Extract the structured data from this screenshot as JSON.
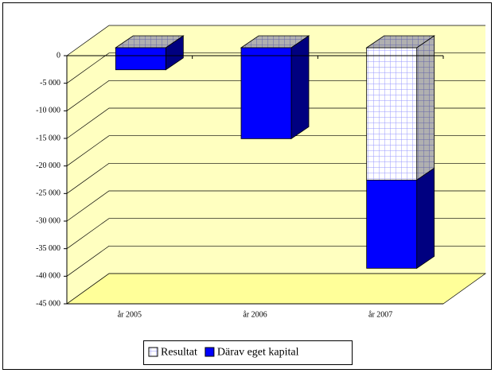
{
  "chart_data": {
    "type": "bar3d-stacked",
    "categories": [
      "år 2005",
      "år 2006",
      "år 2007"
    ],
    "series": [
      {
        "name": "Resultat",
        "color": "#ffffff",
        "pattern": "grid",
        "values": [
          0,
          0,
          -24000
        ]
      },
      {
        "name": "Därav eget kapital",
        "color": "#0000ff",
        "values": [
          -4000,
          -16500,
          -16000
        ]
      }
    ],
    "ylim": [
      -45000,
      0
    ],
    "yticks": [
      0,
      {
        "value": -5000,
        "label": "-5 000"
      },
      {
        "value": -10000,
        "label": "-10 000"
      },
      {
        "value": -15000,
        "label": "-15 000"
      },
      {
        "value": -20000,
        "label": "-20 000"
      },
      {
        "value": -25000,
        "label": "-25 000"
      },
      {
        "value": -30000,
        "label": "-30 000"
      },
      {
        "value": -35000,
        "label": "-35 000"
      },
      {
        "value": -40000,
        "label": "-40 000"
      },
      {
        "value": -45000,
        "label": "-45 000"
      }
    ],
    "grid": true,
    "legend": "bottom"
  }
}
